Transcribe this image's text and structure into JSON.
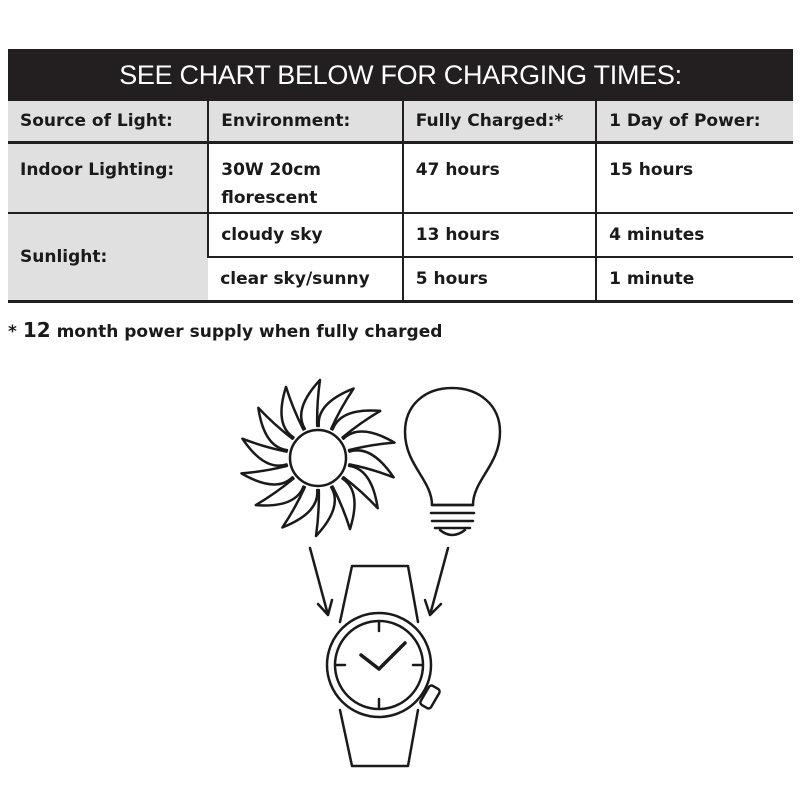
{
  "banner": "SEE CHART BELOW FOR CHARGING TIMES:",
  "table": {
    "headers": [
      "Source of Light:",
      "Environment:",
      "Fully Charged:*",
      "1 Day of Power:"
    ],
    "rows": [
      {
        "source": "Indoor Lighting:",
        "environment_line1": "30W 20cm",
        "environment_line2": "florescent",
        "fully_charged": "47 hours",
        "one_day": "15 hours"
      },
      {
        "source": "Sunlight:",
        "environment": "cloudy sky",
        "fully_charged": "13 hours",
        "one_day": "4 minutes"
      },
      {
        "environment": "clear sky/sunny",
        "fully_charged": "5 hours",
        "one_day": "1 minute"
      }
    ]
  },
  "footnote": {
    "star": "*",
    "number": "12",
    "text": "month power supply when fully charged"
  },
  "illustration": {
    "icons": [
      "sun-icon",
      "light-bulb-icon",
      "arrow-icon",
      "watch-icon"
    ]
  }
}
